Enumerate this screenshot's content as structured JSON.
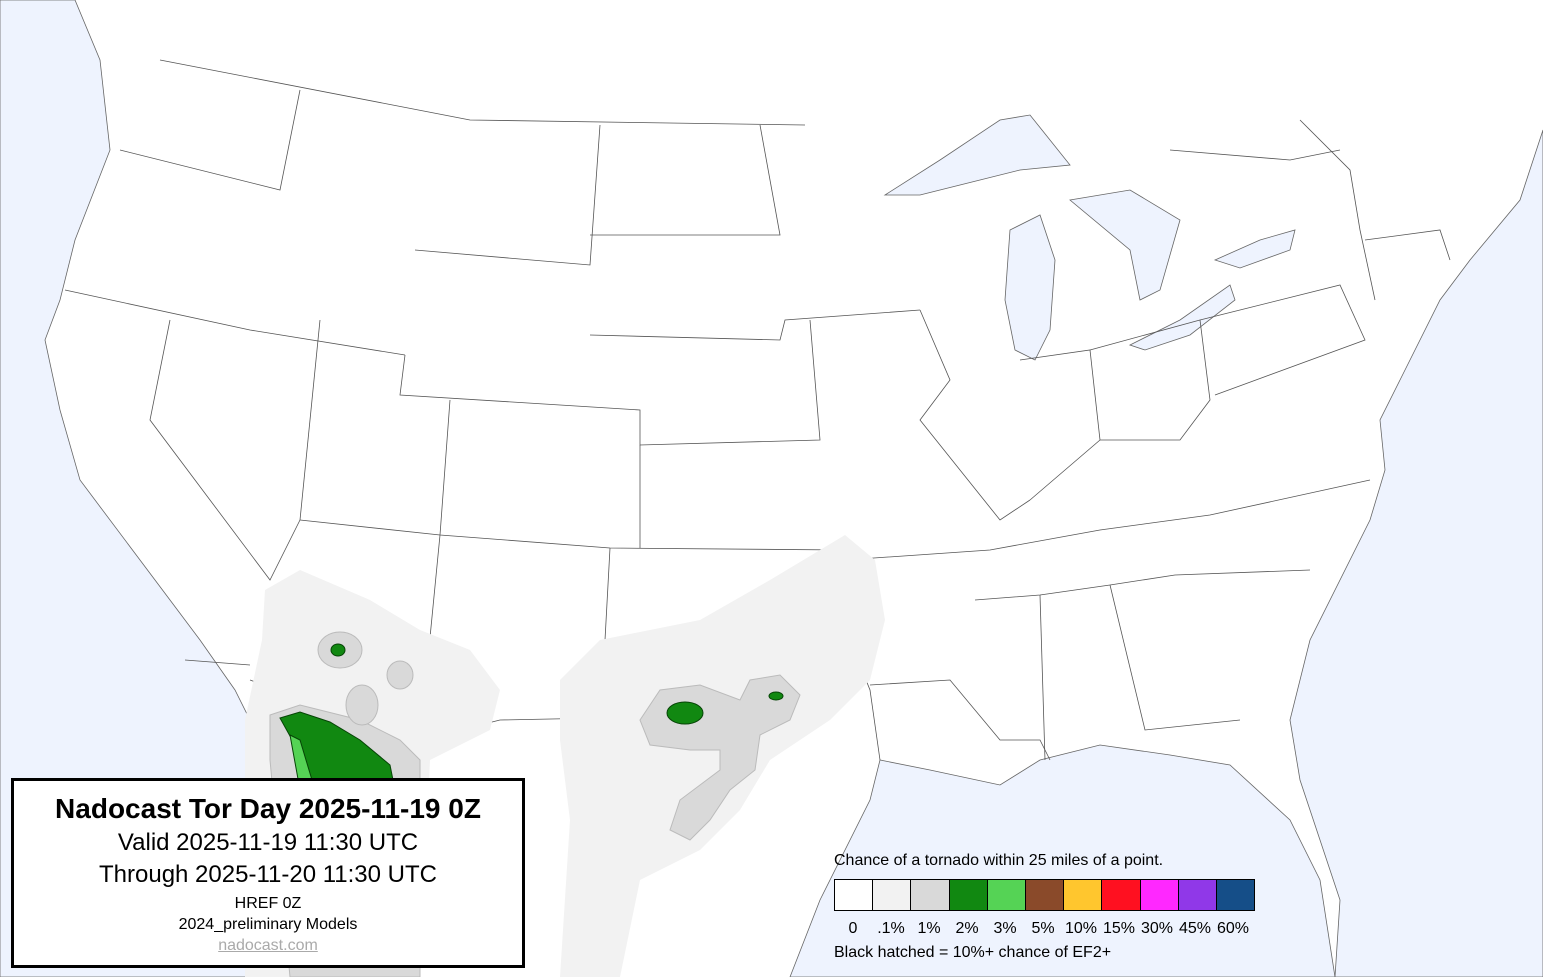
{
  "title_box": {
    "title": "Nadocast Tor Day 2025-11-19 0Z",
    "valid": "Valid 2025-11-19 11:30 UTC",
    "through": "Through 2025-11-20 11:30 UTC",
    "model": "HREF 0Z",
    "models_version": "2024_preliminary Models",
    "link": "nadocast.com"
  },
  "legend": {
    "title": "Chance of a tornado within 25 miles of a point.",
    "items": [
      {
        "label": "0",
        "color": "#ffffff"
      },
      {
        "label": ".1%",
        "color": "#f2f2f2"
      },
      {
        "label": "1%",
        "color": "#d9d9d9"
      },
      {
        "label": "2%",
        "color": "#118811"
      },
      {
        "label": "3%",
        "color": "#55d355"
      },
      {
        "label": "5%",
        "color": "#8a4a2a"
      },
      {
        "label": "10%",
        "color": "#ffc62e"
      },
      {
        "label": "15%",
        "color": "#ff1020"
      },
      {
        "label": "30%",
        "color": "#ff28ff"
      },
      {
        "label": "45%",
        "color": "#9038e8"
      },
      {
        "label": "60%",
        "color": "#154e88"
      }
    ],
    "note": "Black hatched = 10%+ chance of EF2+"
  },
  "colors": {
    "water": "#eef3fe",
    "land": "#ffffff",
    "borders": "#555555"
  }
}
